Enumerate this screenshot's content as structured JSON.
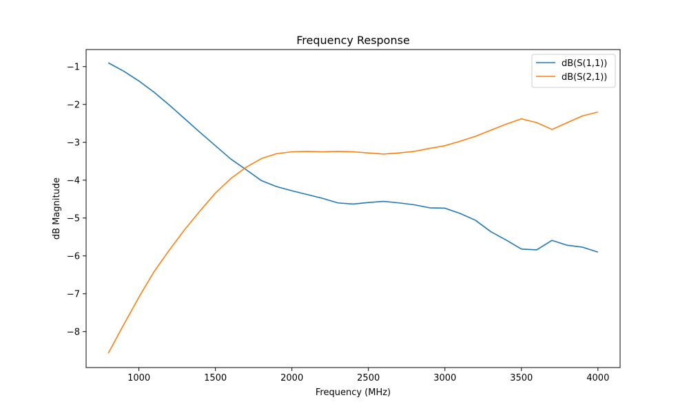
{
  "chart_data": {
    "type": "line",
    "title": "Frequency Response",
    "xlabel": "Frequency (MHz)",
    "ylabel": "dB Magnitude",
    "xlim": [
      655,
      4145
    ],
    "ylim": [
      -8.95,
      -0.55
    ],
    "xticks": [
      1000,
      1500,
      2000,
      2500,
      3000,
      3500,
      4000
    ],
    "yticks": [
      -8,
      -7,
      -6,
      -5,
      -4,
      -3,
      -2,
      -1
    ],
    "grid": false,
    "legend_position": "top-right",
    "x": [
      800,
      900,
      1000,
      1100,
      1200,
      1300,
      1400,
      1500,
      1600,
      1700,
      1800,
      1900,
      2000,
      2100,
      2200,
      2300,
      2400,
      2500,
      2600,
      2700,
      2800,
      2900,
      3000,
      3100,
      3200,
      3300,
      3400,
      3500,
      3600,
      3700,
      3800,
      3900,
      4000
    ],
    "series": [
      {
        "name": "dB(S(1,1))",
        "color": "#1f77b4",
        "values": [
          -0.9,
          -1.12,
          -1.38,
          -1.68,
          -2.02,
          -2.38,
          -2.74,
          -3.09,
          -3.44,
          -3.72,
          -4.01,
          -4.17,
          -4.28,
          -4.38,
          -4.48,
          -4.6,
          -4.63,
          -4.59,
          -4.56,
          -4.6,
          -4.65,
          -4.73,
          -4.74,
          -4.88,
          -5.06,
          -5.36,
          -5.58,
          -5.82,
          -5.84,
          -5.59,
          -5.72,
          -5.77,
          -5.9
        ]
      },
      {
        "name": "dB(S(2,1))",
        "color": "#ff7f0e",
        "values": [
          -8.57,
          -7.82,
          -7.09,
          -6.41,
          -5.84,
          -5.3,
          -4.81,
          -4.34,
          -3.96,
          -3.66,
          -3.43,
          -3.3,
          -3.25,
          -3.24,
          -3.25,
          -3.24,
          -3.25,
          -3.28,
          -3.31,
          -3.28,
          -3.24,
          -3.16,
          -3.09,
          -2.97,
          -2.84,
          -2.68,
          -2.52,
          -2.38,
          -2.48,
          -2.66,
          -2.48,
          -2.3,
          -2.2
        ]
      }
    ]
  }
}
